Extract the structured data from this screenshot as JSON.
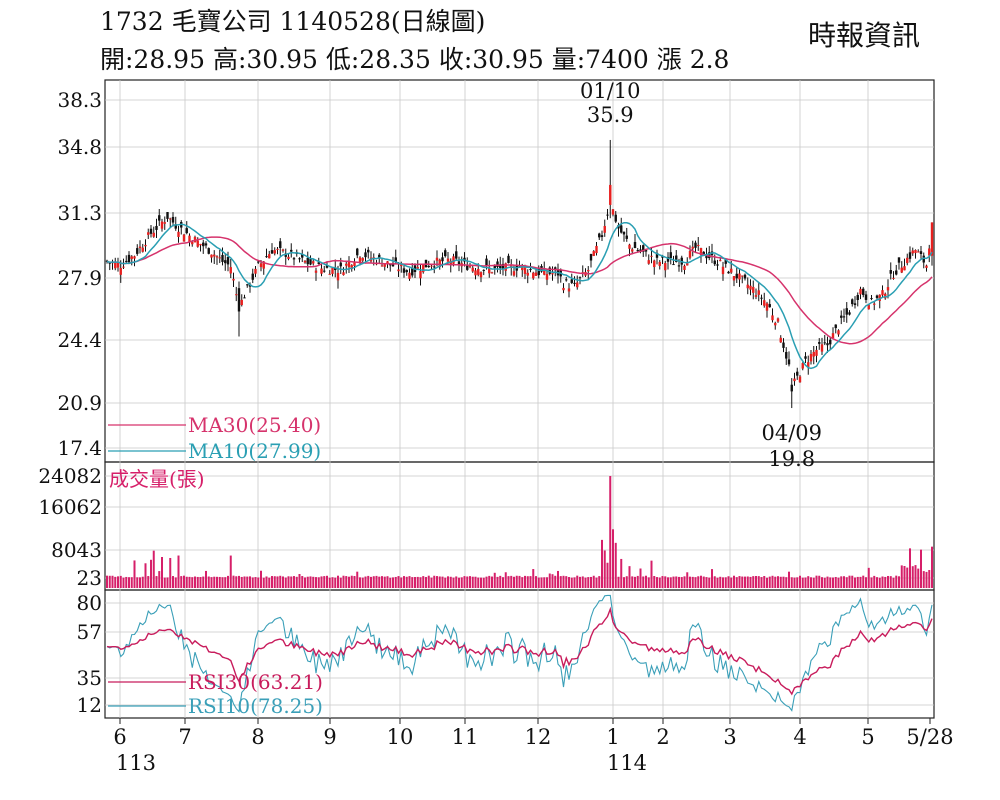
{
  "header": {
    "title": "1732  毛寶公司 1140528(日線圖)",
    "source": "時報資訊",
    "ohlc_line": "開:28.95 高:30.95 低:28.35 收:30.95 量:7400 漲 2.8"
  },
  "colors": {
    "up": "#e8201f",
    "down": "#111111",
    "ma30": "#d6336c",
    "ma10": "#2a9fb3",
    "volume": "#d61f69",
    "rsi30": "#c81c5c",
    "rsi10": "#3a9fb8",
    "grid": "#c8c8c8"
  },
  "chart_data": [
    {
      "type": "candlestick",
      "panel": "price",
      "y_ticks": [
        "38.3",
        "34.8",
        "31.3",
        "27.9",
        "24.4",
        "20.9",
        "17.4"
      ],
      "ylim": [
        17.4,
        38.3
      ],
      "x_ticks": [
        "6",
        "7",
        "8",
        "9",
        "10",
        "11",
        "12",
        "1",
        "2",
        "3",
        "4",
        "5",
        "5/28"
      ],
      "year_labels": [
        "113",
        "114"
      ],
      "annotations": [
        {
          "date": "01/10",
          "value": "35.9"
        },
        {
          "date": "04/09",
          "value": "19.8"
        }
      ],
      "legend": [
        {
          "label": "MA30(25.40)",
          "color": "#d6336c"
        },
        {
          "label": "MA10(27.99)",
          "color": "#2a9fb3"
        }
      ],
      "last": {
        "open": 28.95,
        "high": 30.95,
        "low": 28.35,
        "close": 30.95
      }
    },
    {
      "type": "bar",
      "panel": "volume",
      "title": "成交量(張)",
      "y_ticks": [
        "24082",
        "16062",
        "8043",
        "23"
      ],
      "ylim": [
        0,
        24082
      ],
      "last_value": 7400
    },
    {
      "type": "line",
      "panel": "rsi",
      "y_ticks": [
        "80",
        "57",
        "35",
        "12"
      ],
      "ylim": [
        0,
        90
      ],
      "legend": [
        {
          "label": "RSI30(63.21)",
          "color": "#c81c5c"
        },
        {
          "label": "RSI10(78.25)",
          "color": "#3a9fb8"
        }
      ]
    }
  ]
}
